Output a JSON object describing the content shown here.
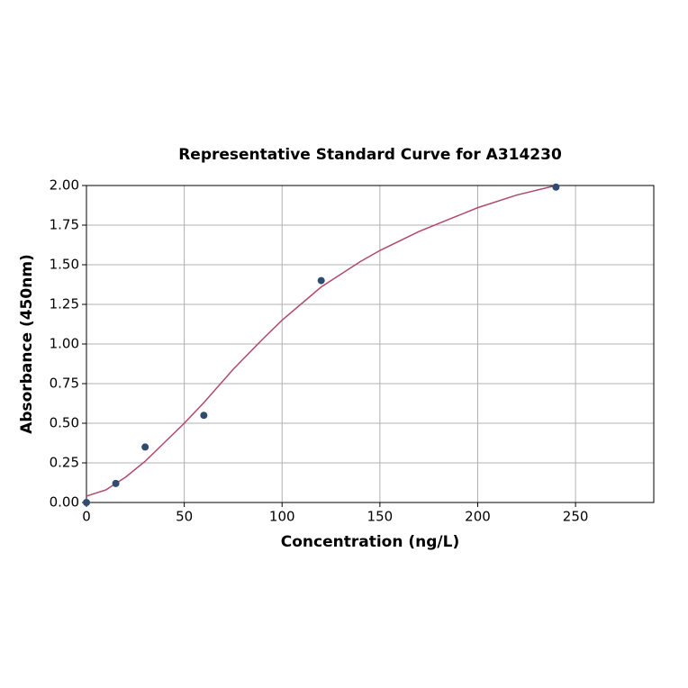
{
  "chart_data": {
    "type": "scatter",
    "title": "Representative Standard Curve for A314230",
    "x_label": "Concentration (ng/L)",
    "y_label": "Absorbance (450nm)",
    "xlim": [
      0,
      290
    ],
    "ylim": [
      0,
      2
    ],
    "xticks": [
      0,
      50,
      100,
      150,
      200,
      250
    ],
    "yticks": [
      {
        "value": 0,
        "label": "0.00"
      },
      {
        "value": 0.25,
        "label": "0.25"
      },
      {
        "value": 0.5,
        "label": "0.50"
      },
      {
        "value": 0.75,
        "label": "0.75"
      },
      {
        "value": 1,
        "label": "1.00"
      },
      {
        "value": 1.25,
        "label": "1.25"
      },
      {
        "value": 1.5,
        "label": "1.50"
      },
      {
        "value": 1.75,
        "label": "1.75"
      },
      {
        "value": 2,
        "label": "2.00"
      }
    ],
    "grid": true,
    "series": [
      {
        "type": "line",
        "color": "#b0496b",
        "x": [
          0,
          10,
          20,
          30,
          40,
          50,
          60,
          75,
          90,
          100,
          120,
          140,
          150,
          170,
          180,
          200,
          220,
          240
        ],
        "values": [
          0.04,
          0.08,
          0.16,
          0.26,
          0.38,
          0.5,
          0.63,
          0.84,
          1.03,
          1.15,
          1.36,
          1.52,
          1.59,
          1.71,
          1.76,
          1.86,
          1.94,
          2.0
        ]
      },
      {
        "type": "scatter",
        "color": "#2f4b6e",
        "x": [
          0,
          15,
          30,
          60,
          120,
          240
        ],
        "values": [
          0.0,
          0.12,
          0.35,
          0.55,
          1.4,
          1.99
        ]
      }
    ]
  }
}
